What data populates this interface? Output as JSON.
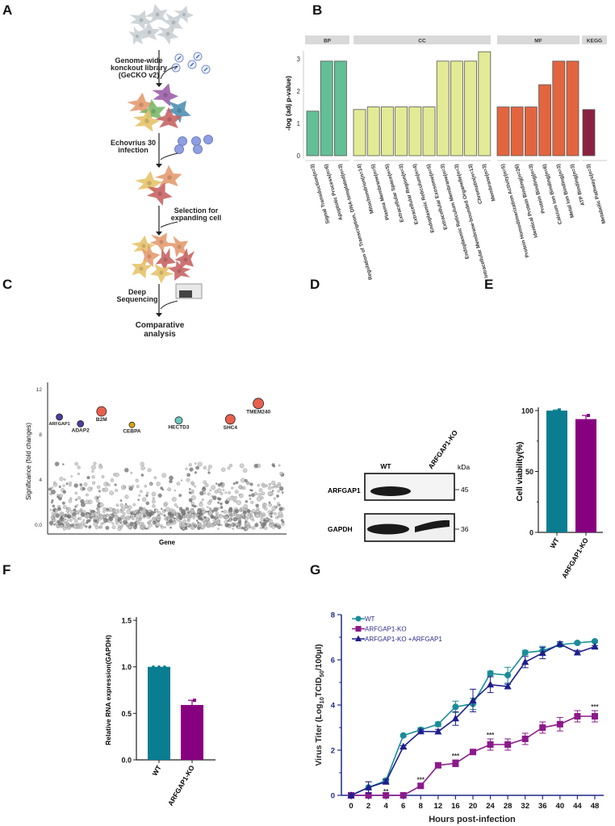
{
  "panel_labels": [
    "A",
    "B",
    "C",
    "D",
    "E",
    "F",
    "G"
  ],
  "panel_a": {
    "steps": [
      [
        "Genome-wide",
        "konckout library",
        "(GeCKO v2)"
      ],
      [
        "Echovrius 30",
        "infection"
      ],
      [
        "Selection for",
        "expanding cell"
      ],
      [
        "Deep",
        "Sequencing"
      ],
      [
        "Comparative",
        "analysis"
      ]
    ]
  },
  "panel_d": {
    "lanes": [
      "WT",
      "ARFGAP1-KO"
    ],
    "unit": "kDa",
    "rows": [
      {
        "protein": "ARFGAP1",
        "marker": "45",
        "bands": [
          1,
          0
        ]
      },
      {
        "protein": "GAPDH",
        "marker": "36",
        "bands": [
          1,
          1
        ]
      }
    ]
  },
  "chart_data": [
    {
      "panel": "B",
      "type": "bar",
      "ylabel": "-log (adj p-value)",
      "ylim": [
        0,
        3.3
      ],
      "yticks": [
        0,
        1,
        2,
        3
      ],
      "facets": [
        {
          "name": "BP",
          "color": "#62bf96",
          "categories": [
            "Signal Transduction(n=3)",
            "Apoptotic Process(n=6)",
            "Regulation of Transcription, DNA-templated(n=3)"
          ],
          "values": [
            1.38,
            2.93,
            2.93
          ]
        },
        {
          "name": "CC",
          "color": "#e3ea95",
          "categories": [
            "Mitochondrion(n=14)",
            "Plasma Membrane(n=5)",
            "Extracellular Space(n=5)",
            "Extracellular Region(n=3)",
            "Endoplasmic Reticulum(n=4)",
            "Extracellular Exosome(n=5)",
            "Endoplasmic Reticulum Membrane(n=3)",
            "Intracellular Membrane-bounded Organelle(n=3)",
            "Chromatin(n=13)",
            "Membrane(n=3)"
          ],
          "values": [
            1.43,
            1.51,
            1.51,
            1.51,
            1.51,
            1.51,
            2.93,
            2.93,
            2.93,
            3.22
          ]
        },
        {
          "name": "MF",
          "color": "#e2653f",
          "categories": [
            "Protein Homodimerization Activity(n=5)",
            "Identical Protein Binding(n=26)",
            "Protein Binding(n=3)",
            "Calcium Ion Binding(n=6)",
            "Metal Ion Binding(n=3)",
            "ATP Binding(n=3)"
          ],
          "values": [
            1.51,
            1.51,
            1.51,
            2.2,
            2.93,
            2.93
          ]
        },
        {
          "name": "KEGG",
          "color": "#8b2141",
          "categories": [
            "Metabolic Pathways(n=3)"
          ],
          "values": [
            1.43
          ]
        }
      ]
    },
    {
      "panel": "C",
      "type": "scatter",
      "xlabel": "Gene",
      "ylabel": "Significance (fold changes)",
      "ylim": [
        -0.6,
        12.5
      ],
      "yticks": [
        "0.0",
        "4",
        "8",
        "12"
      ],
      "highlighted": [
        {
          "gene": "ARFGAP1",
          "x": 4,
          "y": 9.5,
          "color": "#473f9c"
        },
        {
          "gene": "ADAP2",
          "x": 13,
          "y": 8.9,
          "color": "#473f9c"
        },
        {
          "gene": "B2M",
          "x": 22,
          "y": 10.0,
          "color": "#e8604c"
        },
        {
          "gene": "CEBPA",
          "x": 35,
          "y": 8.8,
          "color": "#d9a70f"
        },
        {
          "gene": "HECTD3",
          "x": 55,
          "y": 9.2,
          "color": "#6ac9c0"
        },
        {
          "gene": "SHC4",
          "x": 77,
          "y": 9.3,
          "color": "#e8604c"
        },
        {
          "gene": "TMEM240",
          "x": 89,
          "y": 10.7,
          "color": "#e8604c"
        }
      ],
      "background_points": "non-significant genes, mostly 0-2, max ~5.3"
    },
    {
      "panel": "E",
      "type": "bar",
      "ylabel": "Cell viability(%)",
      "ylim": [
        0,
        100
      ],
      "yticks": [
        "0",
        "50",
        "100"
      ],
      "categories": [
        "WT",
        "ARFGAP1-KO"
      ],
      "values": [
        100,
        93
      ],
      "errors": [
        0.5,
        3
      ],
      "colors": [
        "#0a7d91",
        "#87007f"
      ]
    },
    {
      "panel": "F",
      "type": "bar",
      "ylabel": "Relative RNA expression(GAPDH)",
      "ylim": [
        0,
        1.5
      ],
      "yticks": [
        "0.0",
        "0.5",
        "1.0",
        "1.5"
      ],
      "categories": [
        "WT",
        "ARFGAP1-KO"
      ],
      "values": [
        1.0,
        0.59
      ],
      "errors": [
        0.005,
        0.05
      ],
      "colors": [
        "#0a7d91",
        "#87007f"
      ]
    },
    {
      "panel": "G",
      "type": "line",
      "xlabel": "Hours post-infection",
      "ylabel_main": "Virus Titer (Log",
      "ylabel_sub1": "10",
      "ylabel_mid": "TCID",
      "ylabel_sub2": "50",
      "ylabel_end": "/100µl)",
      "ylim": [
        0,
        8
      ],
      "yticks": [
        "0",
        "2",
        "4",
        "6",
        "8"
      ],
      "categories": [
        "0",
        "2",
        "4",
        "6",
        "8",
        "12",
        "16",
        "20",
        "24",
        "28",
        "32",
        "36",
        "40",
        "44",
        "48"
      ],
      "series": [
        {
          "name": "WT",
          "marker": "circle",
          "color": "#1a8c99",
          "values": [
            0,
            0.35,
            0.65,
            2.65,
            2.9,
            3.15,
            3.92,
            4.05,
            5.4,
            5.32,
            6.32,
            6.4,
            6.67,
            6.75,
            6.82
          ],
          "errors": [
            0,
            0.25,
            0.1,
            0.05,
            0.1,
            0.1,
            0.25,
            0.25,
            0.1,
            0.35,
            0.1,
            0.2,
            0.05,
            0.05,
            0.05
          ]
        },
        {
          "name": "ARFGAP1-KO",
          "marker": "square",
          "color": "#8b1a8b",
          "values": [
            0,
            0,
            0,
            0,
            0.42,
            1.33,
            1.42,
            1.92,
            2.25,
            2.25,
            2.5,
            3.0,
            3.15,
            3.5,
            3.5
          ],
          "errors": [
            0,
            0,
            0,
            0,
            0.1,
            0.1,
            0.15,
            0.1,
            0.25,
            0.25,
            0.25,
            0.25,
            0.3,
            0.25,
            0.25
          ]
        },
        {
          "name": "ARFGAP1-KO +ARFGAP1",
          "marker": "triangle",
          "color": "#1e1e8c",
          "values": [
            0,
            0.35,
            0.6,
            2.15,
            2.83,
            2.82,
            3.4,
            4.2,
            4.9,
            4.82,
            5.9,
            6.3,
            6.7,
            6.32,
            6.58
          ],
          "errors": [
            0,
            0.25,
            0.1,
            0.05,
            0.1,
            0.1,
            0.3,
            0.5,
            0.35,
            0.1,
            0.25,
            0.25,
            0.1,
            0.1,
            0.05
          ]
        }
      ],
      "annotations": [
        {
          "x": "4",
          "text": "**"
        },
        {
          "x": "8",
          "text": "***"
        },
        {
          "x": "16",
          "text": "***"
        },
        {
          "x": "24",
          "text": "***"
        },
        {
          "x": "48",
          "text": "***"
        }
      ]
    }
  ]
}
